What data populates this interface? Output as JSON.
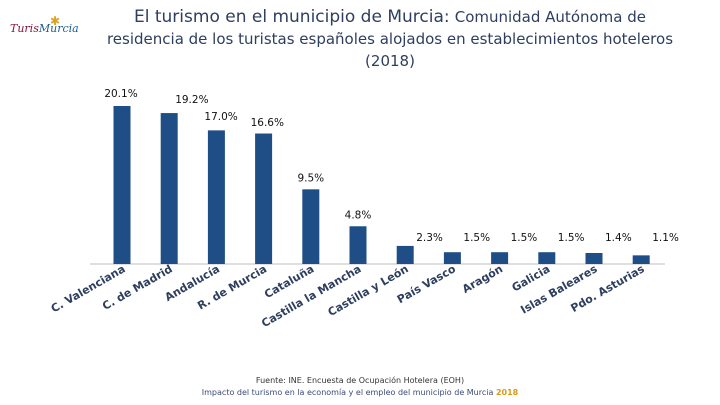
{
  "logo": {
    "text_a": "Turis",
    "text_b": "Murcia"
  },
  "title": {
    "main": "El turismo en el municipio de Murcia:",
    "sub": "Comunidad Autónoma de",
    "line2": "residencia de los turistas españoles alojados en establecimientos hoteleros",
    "year": "(2018)"
  },
  "footer": {
    "source": "Fuente: INE. Encuesta de Ocupación Hotelera (EOH)",
    "caption": "Impacto del turismo en la economía y el empleo del municipio de Murcia",
    "caption_year": "2018"
  },
  "chart_data": {
    "type": "bar",
    "title": "Comunidad Autónoma de residencia de los turistas españoles alojados en establecimientos hoteleros (2018)",
    "categories": [
      "C. Valenciana",
      "C. de Madrid",
      "Andalucía",
      "R. de Murcia",
      "Cataluña",
      "Castilla la Mancha",
      "Castilla y León",
      "País Vasco",
      "Aragón",
      "Galicia",
      "Islas Baleares",
      "Pdo. Asturias"
    ],
    "values": [
      20.1,
      19.2,
      17.0,
      16.6,
      9.5,
      4.8,
      2.3,
      1.5,
      1.5,
      1.5,
      1.4,
      1.1
    ],
    "labels": [
      "20.1%",
      "19.2%",
      "17.0%",
      "16.6%",
      "9.5%",
      "4.8%",
      "2.3%",
      "1.5%",
      "1.5%",
      "1.5%",
      "1.4%",
      "1.1%"
    ],
    "ylim": [
      0,
      20.1
    ],
    "bar_color": "#1f4e86",
    "xlabel": "",
    "ylabel": ""
  }
}
